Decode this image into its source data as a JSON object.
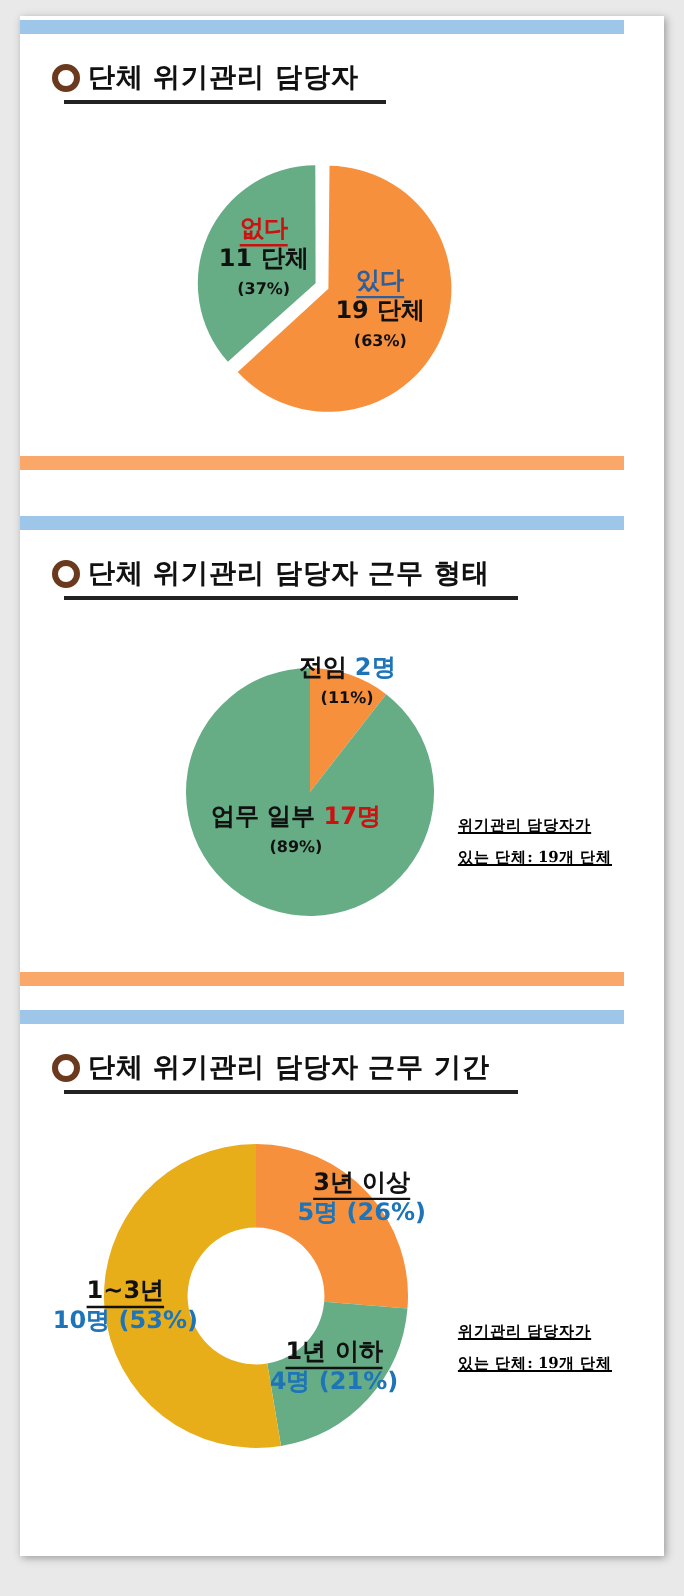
{
  "chart_data": [
    {
      "type": "pie",
      "title": "단체 위기관리 담당자",
      "categories": [
        "있다",
        "없다"
      ],
      "values": [
        19,
        11
      ],
      "colors": [
        "#f7903d",
        "#66ad86"
      ],
      "value_labels": [
        "19 단체\n(63%)",
        "11 단체\n(37%)"
      ]
    },
    {
      "type": "pie",
      "title": "단체 위기관리 담당자 근무 형태",
      "categories": [
        "전임",
        "업무 일부"
      ],
      "values": [
        2,
        17
      ],
      "colors": [
        "#f7903d",
        "#66ad86"
      ],
      "value_labels": [
        "2명\n(11%)",
        "17명\n(89%)"
      ],
      "annotations": [
        "위기관리 담당자가\n있는 단체: 19개 단체"
      ]
    },
    {
      "type": "donut",
      "title": "단체 위기관리 담당자 근무 기간",
      "categories": [
        "3년 이상",
        "1년 이하",
        "1~3년"
      ],
      "values": [
        5,
        4,
        10
      ],
      "colors": [
        "#f7903d",
        "#66ad86",
        "#e8ae1a"
      ],
      "value_labels": [
        "5명 (26%)",
        "4명 (21%)",
        "10명 (53%)"
      ],
      "annotations": [
        "위기관리 담당자가\n있는 단체: 19개 단체"
      ]
    }
  ]
}
